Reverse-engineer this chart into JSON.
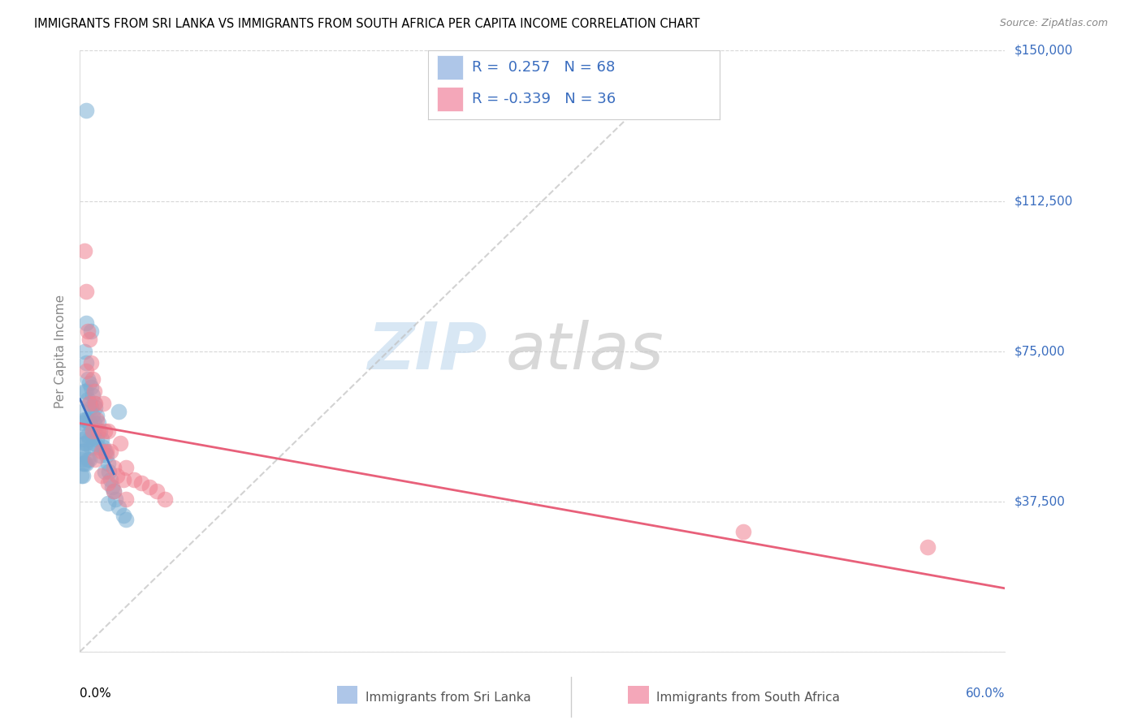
{
  "title": "IMMIGRANTS FROM SRI LANKA VS IMMIGRANTS FROM SOUTH AFRICA PER CAPITA INCOME CORRELATION CHART",
  "source": "Source: ZipAtlas.com",
  "ylabel": "Per Capita Income",
  "yticks": [
    0,
    37500,
    75000,
    112500,
    150000
  ],
  "ytick_labels": [
    "",
    "$37,500",
    "$75,000",
    "$112,500",
    "$150,000"
  ],
  "xmin": 0.0,
  "xmax": 0.6,
  "ymin": 0,
  "ymax": 150000,
  "sri_lanka_color": "#7bafd4",
  "south_africa_color": "#f08090",
  "sri_lanka_legend_color": "#aec6e8",
  "south_africa_legend_color": "#f4a7b9",
  "sri_lanka_line_color": "#3a6dbf",
  "south_africa_line_color": "#e8607a",
  "ref_line_color": "#c0c0c0",
  "watermark_zip_color": "#c8ddf0",
  "watermark_atlas_color": "#c8c8c8",
  "sri_lanka_x": [
    0.001,
    0.001,
    0.001,
    0.001,
    0.002,
    0.002,
    0.002,
    0.002,
    0.002,
    0.002,
    0.003,
    0.003,
    0.003,
    0.003,
    0.003,
    0.004,
    0.004,
    0.004,
    0.004,
    0.004,
    0.004,
    0.005,
    0.005,
    0.005,
    0.005,
    0.005,
    0.006,
    0.006,
    0.006,
    0.006,
    0.006,
    0.007,
    0.007,
    0.007,
    0.007,
    0.008,
    0.008,
    0.008,
    0.009,
    0.009,
    0.009,
    0.01,
    0.01,
    0.011,
    0.011,
    0.012,
    0.012,
    0.013,
    0.013,
    0.014,
    0.015,
    0.016,
    0.016,
    0.017,
    0.018,
    0.019,
    0.02,
    0.021,
    0.022,
    0.023,
    0.025,
    0.028,
    0.004,
    0.03,
    0.025,
    0.018,
    0.007
  ],
  "sri_lanka_y": [
    55000,
    50000,
    48000,
    44000,
    60000,
    57000,
    53000,
    50000,
    47000,
    44000,
    75000,
    65000,
    58000,
    52000,
    47000,
    82000,
    72000,
    65000,
    58000,
    52000,
    47000,
    68000,
    63000,
    58000,
    54000,
    48000,
    67000,
    62000,
    57000,
    53000,
    48000,
    66000,
    61000,
    56000,
    51000,
    64000,
    59000,
    54000,
    62000,
    57000,
    52000,
    61000,
    55000,
    59000,
    53000,
    57000,
    51000,
    55000,
    49000,
    53000,
    51000,
    50000,
    45000,
    49000,
    47000,
    45000,
    43000,
    41000,
    40000,
    38000,
    36000,
    34000,
    135000,
    33000,
    60000,
    37000,
    80000
  ],
  "south_africa_x": [
    0.003,
    0.004,
    0.005,
    0.006,
    0.007,
    0.008,
    0.009,
    0.01,
    0.011,
    0.012,
    0.014,
    0.015,
    0.016,
    0.017,
    0.018,
    0.02,
    0.022,
    0.024,
    0.026,
    0.028,
    0.03,
    0.035,
    0.04,
    0.045,
    0.05,
    0.055,
    0.004,
    0.006,
    0.008,
    0.01,
    0.014,
    0.018,
    0.022,
    0.03,
    0.43,
    0.55
  ],
  "south_africa_y": [
    100000,
    90000,
    80000,
    78000,
    72000,
    68000,
    65000,
    62000,
    58000,
    55000,
    50000,
    62000,
    55000,
    50000,
    55000,
    50000,
    46000,
    44000,
    52000,
    43000,
    46000,
    43000,
    42000,
    41000,
    40000,
    38000,
    70000,
    62000,
    55000,
    48000,
    44000,
    42000,
    40000,
    38000,
    30000,
    26000
  ]
}
